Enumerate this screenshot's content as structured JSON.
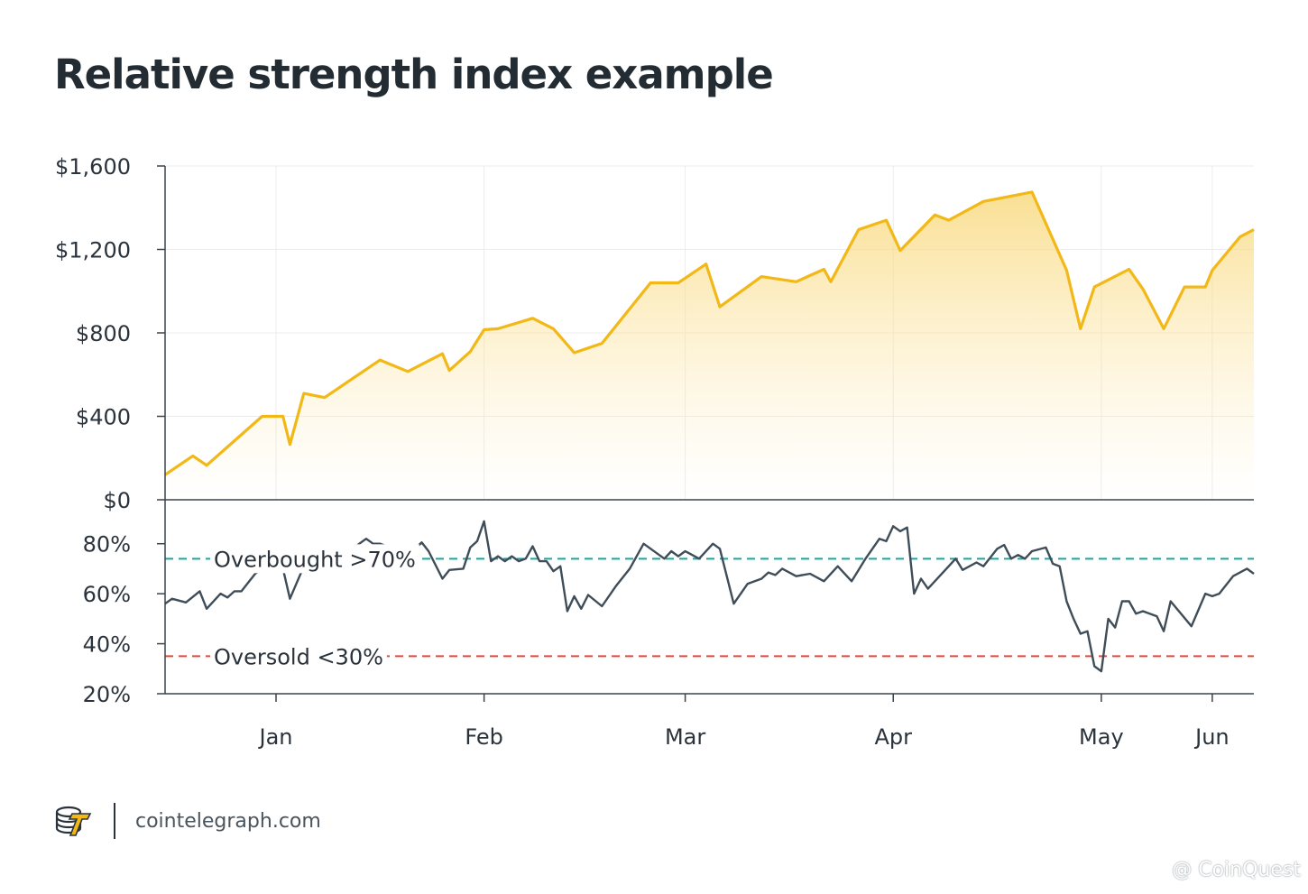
{
  "title": "Relative strength index example",
  "footer": {
    "site": "cointelegraph.com",
    "logo_icon": "cointelegraph-logo-icon"
  },
  "watermark": "@ CoinQuest",
  "colors": {
    "price_line": "#f2b817",
    "price_fill": "#fbe2a2",
    "rsi_line": "#3f4d59",
    "overbought": "#1aa79a",
    "oversold": "#e5473a",
    "grid": "#ececec",
    "axis": "#3a434b"
  },
  "chart_data": [
    {
      "type": "area",
      "title": "Relative strength index example",
      "xlabel": "",
      "ylabel": "",
      "x_tick_labels": [
        "Jan",
        "Feb",
        "Mar",
        "Apr",
        "May",
        "Jun"
      ],
      "y_tick_labels": [
        "$0",
        "$400",
        "$800",
        "$1,200",
        "$1,600"
      ],
      "ylim": [
        0,
        1600
      ],
      "grid": true,
      "series": [
        {
          "points": [
            [
              -31,
              120
            ],
            [
              -27,
              210
            ],
            [
              -25,
              165
            ],
            [
              -17,
              400
            ],
            [
              -14,
              400
            ],
            [
              -13,
              265
            ],
            [
              -11,
              510
            ],
            [
              -8,
              490
            ],
            [
              0,
              670
            ],
            [
              4,
              615
            ],
            [
              9,
              700
            ],
            [
              10,
              620
            ],
            [
              13,
              710
            ],
            [
              15,
              815
            ],
            [
              17,
              820
            ],
            [
              22,
              870
            ],
            [
              25,
              820
            ],
            [
              28,
              705
            ],
            [
              32,
              750
            ],
            [
              39,
              1040
            ],
            [
              43,
              1040
            ],
            [
              47,
              1130
            ],
            [
              49,
              925
            ],
            [
              55,
              1070
            ],
            [
              60,
              1045
            ],
            [
              64,
              1105
            ],
            [
              65,
              1045
            ],
            [
              69,
              1295
            ],
            [
              73,
              1340
            ],
            [
              75,
              1195
            ],
            [
              80,
              1365
            ],
            [
              82,
              1340
            ],
            [
              87,
              1430
            ],
            [
              94,
              1475
            ],
            [
              99,
              1100
            ],
            [
              101,
              820
            ],
            [
              103,
              1020
            ],
            [
              108,
              1105
            ],
            [
              110,
              1010
            ],
            [
              113,
              820
            ],
            [
              116,
              1020
            ],
            [
              119,
              1020
            ],
            [
              120,
              1100
            ],
            [
              124,
              1260
            ],
            [
              126,
              1295
            ]
          ]
        }
      ]
    },
    {
      "type": "line",
      "xlabel": "",
      "ylabel": "",
      "x_tick_labels": [
        "Jan",
        "Feb",
        "Mar",
        "Apr",
        "May",
        "Jun"
      ],
      "y_tick_labels": [
        "20%",
        "40%",
        "60%",
        "80%"
      ],
      "ylim": [
        20,
        90
      ],
      "grid": true,
      "reference_lines": [
        {
          "label": "Overbought >70%",
          "value": 74,
          "color": "#1aa79a"
        },
        {
          "label": "Oversold <30%",
          "value": 35,
          "color": "#e5473a"
        }
      ],
      "series": [
        {
          "points": [
            [
              -31,
              56
            ],
            [
              -30,
              58
            ],
            [
              -28,
              56.5
            ],
            [
              -26,
              61
            ],
            [
              -25,
              54
            ],
            [
              -23,
              60
            ],
            [
              -22,
              58.5
            ],
            [
              -21,
              61
            ],
            [
              -20,
              61
            ],
            [
              -18,
              68
            ],
            [
              -16,
              72
            ],
            [
              -14,
              70
            ],
            [
              -13,
              58
            ],
            [
              -11,
              71
            ],
            [
              -9,
              76
            ],
            [
              -4,
              78
            ],
            [
              -2,
              82
            ],
            [
              -1,
              80
            ],
            [
              0,
              80
            ],
            [
              4,
              76
            ],
            [
              5,
              78
            ],
            [
              6,
              80.5
            ],
            [
              7,
              77
            ],
            [
              9,
              66
            ],
            [
              10,
              69.5
            ],
            [
              12,
              70
            ],
            [
              13,
              78.5
            ],
            [
              14,
              81
            ],
            [
              15,
              89
            ],
            [
              16,
              73
            ],
            [
              17,
              75
            ],
            [
              18,
              73
            ],
            [
              19,
              75
            ],
            [
              20,
              73
            ],
            [
              21,
              74
            ],
            [
              22,
              79
            ],
            [
              23,
              73
            ],
            [
              24,
              73
            ],
            [
              25,
              69
            ],
            [
              26,
              71
            ],
            [
              27,
              53
            ],
            [
              28,
              59
            ],
            [
              29,
              54
            ],
            [
              30,
              59.5
            ],
            [
              32,
              55
            ],
            [
              34,
              63
            ],
            [
              36,
              70
            ],
            [
              38,
              80
            ],
            [
              41,
              74
            ],
            [
              42,
              77
            ],
            [
              43,
              75
            ],
            [
              44,
              77
            ],
            [
              46,
              74
            ],
            [
              48,
              80
            ],
            [
              49,
              78
            ],
            [
              51,
              56
            ],
            [
              53,
              64
            ],
            [
              55,
              66
            ],
            [
              56,
              68.5
            ],
            [
              57,
              67.5
            ],
            [
              58,
              70
            ],
            [
              60,
              67
            ],
            [
              62,
              68
            ],
            [
              64,
              65
            ],
            [
              66,
              71
            ],
            [
              68,
              65
            ],
            [
              70,
              74
            ],
            [
              72,
              82
            ],
            [
              73,
              81
            ],
            [
              74,
              87
            ],
            [
              75,
              85
            ],
            [
              76,
              86.5
            ],
            [
              77,
              60
            ],
            [
              78,
              66
            ],
            [
              79,
              62
            ],
            [
              82,
              71
            ],
            [
              83,
              74
            ],
            [
              84,
              69.5
            ],
            [
              86,
              72.5
            ],
            [
              87,
              71
            ],
            [
              89,
              78
            ],
            [
              90,
              79.5
            ],
            [
              91,
              74
            ],
            [
              92,
              75.5
            ],
            [
              93,
              74
            ],
            [
              94,
              77
            ],
            [
              96,
              78.5
            ],
            [
              97,
              72
            ],
            [
              98,
              71
            ],
            [
              99,
              57
            ],
            [
              100,
              50
            ],
            [
              101,
              44
            ],
            [
              102,
              45
            ],
            [
              103,
              31
            ],
            [
              104,
              29
            ],
            [
              105,
              50
            ],
            [
              106,
              46.5
            ],
            [
              107,
              57
            ],
            [
              108,
              57
            ],
            [
              109,
              52
            ],
            [
              110,
              53
            ],
            [
              112,
              51
            ],
            [
              113,
              45
            ],
            [
              114,
              57
            ],
            [
              117,
              47
            ],
            [
              119,
              60
            ],
            [
              120,
              59
            ],
            [
              121,
              60
            ],
            [
              123,
              67
            ],
            [
              125,
              70
            ],
            [
              126,
              68
            ]
          ]
        }
      ]
    }
  ]
}
